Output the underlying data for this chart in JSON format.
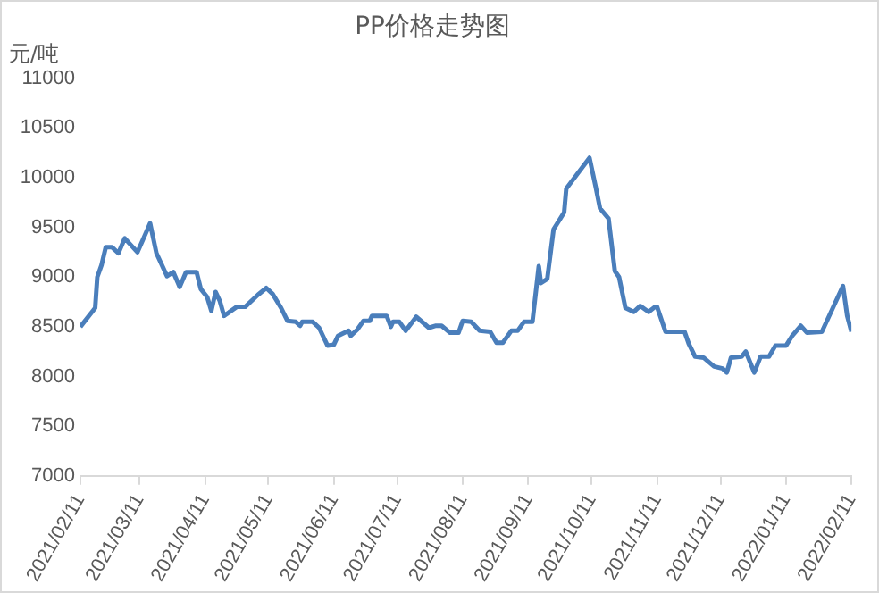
{
  "chart_data": {
    "type": "line",
    "title": "PP价格走势图",
    "ylabel": "元/吨",
    "x": [
      "2021-02-11",
      "2021-02-18",
      "2021-02-19",
      "2021-02-21",
      "2021-02-23",
      "2021-02-26",
      "2021-03-01",
      "2021-03-04",
      "2021-03-10",
      "2021-03-16",
      "2021-03-19",
      "2021-03-24",
      "2021-03-27",
      "2021-03-28",
      "2021-03-30",
      "2021-04-02",
      "2021-04-07",
      "2021-04-09",
      "2021-04-12",
      "2021-04-14",
      "2021-04-16",
      "2021-04-18",
      "2021-04-20",
      "2021-04-26",
      "2021-04-30",
      "2021-05-06",
      "2021-05-10",
      "2021-05-13",
      "2021-05-17",
      "2021-05-20",
      "2021-05-24",
      "2021-05-26",
      "2021-05-27",
      "2021-06-01",
      "2021-06-04",
      "2021-06-08",
      "2021-06-11",
      "2021-06-13",
      "2021-06-18",
      "2021-06-19",
      "2021-06-22",
      "2021-06-25",
      "2021-06-28",
      "2021-06-29",
      "2021-07-06",
      "2021-07-08",
      "2021-07-09",
      "2021-07-12",
      "2021-07-15",
      "2021-07-20",
      "2021-07-26",
      "2021-07-29",
      "2021-08-01",
      "2021-08-05",
      "2021-08-09",
      "2021-08-11",
      "2021-08-15",
      "2021-08-19",
      "2021-08-24",
      "2021-08-27",
      "2021-08-30",
      "2021-09-03",
      "2021-09-06",
      "2021-09-09",
      "2021-09-13",
      "2021-09-16",
      "2021-09-17",
      "2021-09-20",
      "2021-09-23",
      "2021-09-28",
      "2021-09-29",
      "2021-10-10",
      "2021-10-13",
      "2021-10-15",
      "2021-10-19",
      "2021-10-22",
      "2021-10-24",
      "2021-10-27",
      "2021-10-31",
      "2021-11-03",
      "2021-11-07",
      "2021-11-10",
      "2021-11-11",
      "2021-11-15",
      "2021-11-24",
      "2021-11-26",
      "2021-11-29",
      "2021-12-03",
      "2021-12-08",
      "2021-12-12",
      "2021-12-14",
      "2021-12-16",
      "2021-12-21",
      "2021-12-23",
      "2021-12-27",
      "2021-12-30",
      "2022-01-03",
      "2022-01-06",
      "2022-01-11",
      "2022-01-14",
      "2022-01-18",
      "2022-01-21",
      "2022-01-28",
      "2022-02-07",
      "2022-02-09",
      "2022-02-11"
    ],
    "series": [
      {
        "color": "#4a7ebb",
        "values": [
          8500,
          8690,
          9000,
          9120,
          9300,
          9300,
          9240,
          9390,
          9250,
          9540,
          9240,
          9010,
          9050,
          9000,
          8900,
          9050,
          9050,
          8880,
          8800,
          8660,
          8850,
          8760,
          8610,
          8700,
          8700,
          8820,
          8890,
          8830,
          8690,
          8560,
          8550,
          8510,
          8550,
          8550,
          8490,
          8310,
          8320,
          8410,
          8460,
          8410,
          8470,
          8560,
          8560,
          8610,
          8610,
          8500,
          8550,
          8550,
          8460,
          8600,
          8490,
          8510,
          8510,
          8440,
          8440,
          8560,
          8550,
          8460,
          8450,
          8340,
          8340,
          8460,
          8460,
          8550,
          8550,
          9110,
          8940,
          8980,
          9480,
          9650,
          9890,
          10200,
          9900,
          9690,
          9590,
          9060,
          9000,
          8690,
          8650,
          8710,
          8650,
          8700,
          8700,
          8450,
          8450,
          8330,
          8200,
          8190,
          8100,
          8080,
          8040,
          8190,
          8200,
          8250,
          8040,
          8200,
          8200,
          8310,
          8310,
          8410,
          8510,
          8440,
          8450,
          8910,
          8610,
          8450
        ]
      }
    ],
    "xlim": [
      "2021-02-11",
      "2022-02-11"
    ],
    "xticks": [
      {
        "value": "2021-02-11",
        "label": "2021/02/11"
      },
      {
        "value": "2021-03-11",
        "label": "2021/03/11"
      },
      {
        "value": "2021-04-11",
        "label": "2021/04/11"
      },
      {
        "value": "2021-05-11",
        "label": "2021/05/11"
      },
      {
        "value": "2021-06-11",
        "label": "2021/06/11"
      },
      {
        "value": "2021-07-11",
        "label": "2021/07/11"
      },
      {
        "value": "2021-08-11",
        "label": "2021/08/11"
      },
      {
        "value": "2021-09-11",
        "label": "2021/09/11"
      },
      {
        "value": "2021-10-11",
        "label": "2021/10/11"
      },
      {
        "value": "2021-11-11",
        "label": "2021/11/11"
      },
      {
        "value": "2021-12-11",
        "label": "2021/12/11"
      },
      {
        "value": "2022-01-11",
        "label": "2022/01/11"
      },
      {
        "value": "2022-02-11",
        "label": "2022/02/11"
      }
    ],
    "ylim": [
      7000,
      11000
    ],
    "yticks": [
      7000,
      7500,
      8000,
      8500,
      9000,
      9500,
      10000,
      10500,
      11000
    ],
    "grid": false,
    "legend": false,
    "marker": "none",
    "line_style": "solid"
  }
}
